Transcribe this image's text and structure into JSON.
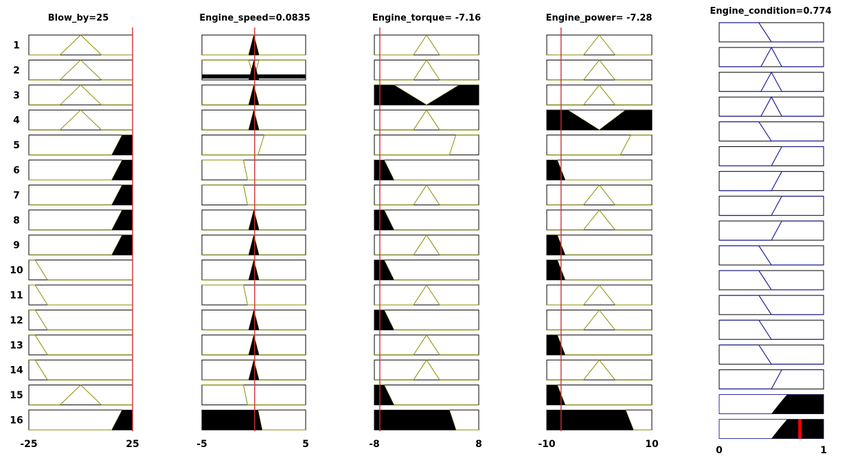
{
  "titles": {
    "blow_by": "Blow_by=25",
    "engine_speed": "Engine_speed=0.0835",
    "engine_torque": "Engine_torque= -7.16",
    "engine_power": "Engine_power= -7.28",
    "engine_condition": "Engine_condition=0.774"
  },
  "rules": [
    "1",
    "2",
    "3",
    "4",
    "5",
    "6",
    "7",
    "8",
    "9",
    "10",
    "11",
    "12",
    "13",
    "14",
    "15",
    "16"
  ],
  "ticks": {
    "blow_by": [
      "-25",
      "25"
    ],
    "engine_speed": [
      "-5",
      "5"
    ],
    "engine_torque": [
      "-8",
      "8"
    ],
    "engine_power": [
      "-10",
      "10"
    ],
    "engine_condition": [
      "0",
      "1"
    ]
  },
  "inputs": {
    "blow_by": 25,
    "engine_speed": 0.0835,
    "engine_torque": -7.16,
    "engine_power": -7.28
  },
  "output": 0.774,
  "colors": {
    "input_mf_line": "#8b8b00",
    "output_mf_line": "#1f1f9a",
    "input_marker": "#d03030",
    "output_marker": "#ff0000",
    "fill": "#000000"
  },
  "inputs_order": [
    "blow_by",
    "engine_speed",
    "engine_torque",
    "engine_power"
  ],
  "mf_types": {
    "blow_by": {
      "low": {
        "shape": "trap",
        "pts": [
          [
            -25,
            1
          ],
          [
            -22,
            1
          ],
          [
            -16,
            0
          ]
        ]
      },
      "mid": {
        "shape": "tri",
        "pts": [
          [
            -10,
            0
          ],
          [
            0,
            1
          ],
          [
            10,
            0
          ]
        ]
      },
      "high": {
        "shape": "trap",
        "pts": [
          [
            15,
            0
          ],
          [
            20,
            1
          ],
          [
            25,
            1
          ]
        ]
      }
    },
    "engine_speed": {
      "low": {
        "shape": "trap",
        "pts": [
          [
            -5,
            1
          ],
          [
            -1,
            1
          ],
          [
            -0.6,
            0
          ]
        ]
      },
      "mid": {
        "shape": "tri",
        "pts": [
          [
            -0.5,
            0
          ],
          [
            0,
            1
          ],
          [
            0.5,
            0
          ]
        ]
      },
      "high": {
        "shape": "trap",
        "pts": [
          [
            0.4,
            0
          ],
          [
            1,
            1
          ],
          [
            5,
            1
          ]
        ]
      },
      "wide": {
        "shape": "trap",
        "pts": [
          [
            -5,
            1
          ],
          [
            0.4,
            1
          ],
          [
            0.8,
            0
          ]
        ]
      }
    },
    "engine_torque": {
      "low": {
        "shape": "trap",
        "pts": [
          [
            -8,
            1
          ],
          [
            -6.5,
            1
          ],
          [
            -5,
            0
          ]
        ]
      },
      "mid": {
        "shape": "tri",
        "pts": [
          [
            -2,
            0
          ],
          [
            0,
            1
          ],
          [
            2,
            0
          ]
        ]
      },
      "notmid": {
        "shape": "notch",
        "pts": [
          [
            -8,
            1
          ],
          [
            -5,
            1
          ],
          [
            0,
            0
          ],
          [
            5,
            1
          ],
          [
            8,
            1
          ]
        ]
      },
      "high": {
        "shape": "trap",
        "pts": [
          [
            3.5,
            0
          ],
          [
            4.5,
            1
          ],
          [
            8,
            1
          ]
        ]
      },
      "wide": {
        "shape": "trap",
        "pts": [
          [
            -8,
            1
          ],
          [
            3.5,
            1
          ],
          [
            4.5,
            0
          ]
        ]
      }
    },
    "engine_power": {
      "low": {
        "shape": "trap",
        "pts": [
          [
            -10,
            1
          ],
          [
            -8,
            1
          ],
          [
            -6.5,
            0
          ]
        ]
      },
      "mid": {
        "shape": "tri",
        "pts": [
          [
            -3,
            0
          ],
          [
            0,
            1
          ],
          [
            3,
            0
          ]
        ]
      },
      "notmid": {
        "shape": "notch",
        "pts": [
          [
            -10,
            1
          ],
          [
            -6,
            1
          ],
          [
            0,
            0
          ],
          [
            5,
            1
          ],
          [
            10,
            1
          ]
        ]
      },
      "high": {
        "shape": "trap",
        "pts": [
          [
            4,
            0
          ],
          [
            6,
            1
          ],
          [
            10,
            1
          ]
        ]
      },
      "wide": {
        "shape": "trap",
        "pts": [
          [
            -10,
            1
          ],
          [
            5,
            1
          ],
          [
            6.5,
            0
          ]
        ]
      }
    }
  },
  "rule_table": [
    {
      "blow_by": "mid",
      "engine_speed": "mid",
      "engine_torque": "mid",
      "engine_power": "mid",
      "out": "low"
    },
    {
      "blow_by": "mid",
      "engine_speed": "mid_both",
      "engine_torque": "mid",
      "engine_power": "mid",
      "out": "mid"
    },
    {
      "blow_by": "mid",
      "engine_speed": "mid",
      "engine_torque": "notmid",
      "engine_power": "mid",
      "out": "mid"
    },
    {
      "blow_by": "mid",
      "engine_speed": "mid",
      "engine_torque": "mid",
      "engine_power": "notmid",
      "out": "mid"
    },
    {
      "blow_by": "high",
      "engine_speed": "high",
      "engine_torque": "high",
      "engine_power": "high",
      "out": "low"
    },
    {
      "blow_by": "high",
      "engine_speed": "low",
      "engine_torque": "low",
      "engine_power": "low",
      "out": "high"
    },
    {
      "blow_by": "high",
      "engine_speed": "low",
      "engine_torque": "mid",
      "engine_power": "mid",
      "out": "high"
    },
    {
      "blow_by": "high",
      "engine_speed": "mid",
      "engine_torque": "low",
      "engine_power": "mid",
      "out": "high"
    },
    {
      "blow_by": "high",
      "engine_speed": "mid",
      "engine_torque": "mid",
      "engine_power": "low",
      "out": "high"
    },
    {
      "blow_by": "low",
      "engine_speed": "mid",
      "engine_torque": "low",
      "engine_power": "low",
      "out": "low"
    },
    {
      "blow_by": "low",
      "engine_speed": "low",
      "engine_torque": "mid",
      "engine_power": "mid",
      "out": "low"
    },
    {
      "blow_by": "low",
      "engine_speed": "mid",
      "engine_torque": "low",
      "engine_power": "mid",
      "out": "low"
    },
    {
      "blow_by": "low",
      "engine_speed": "mid",
      "engine_torque": "mid",
      "engine_power": "low",
      "out": "low"
    },
    {
      "blow_by": "low",
      "engine_speed": "mid",
      "engine_torque": "mid",
      "engine_power": "mid",
      "out": "low"
    },
    {
      "blow_by": "mid",
      "engine_speed": "low",
      "engine_torque": "low",
      "engine_power": "low",
      "out": "high"
    },
    {
      "blow_by": "high",
      "engine_speed": "wide",
      "engine_torque": "wide",
      "engine_power": "wide",
      "out": "agg"
    }
  ],
  "output_mfs": {
    "low": [
      [
        0,
        1
      ],
      [
        0.38,
        1
      ],
      [
        0.5,
        0
      ]
    ],
    "mid": [
      [
        0.4,
        0
      ],
      [
        0.5,
        1
      ],
      [
        0.6,
        0
      ]
    ],
    "high": [
      [
        0.5,
        0
      ],
      [
        0.6,
        1
      ],
      [
        1,
        1
      ]
    ]
  },
  "output_row16_fill": [
    [
      0.5,
      0
    ],
    [
      0.58,
      0.55
    ],
    [
      0.65,
      1
    ],
    [
      1,
      1
    ]
  ]
}
